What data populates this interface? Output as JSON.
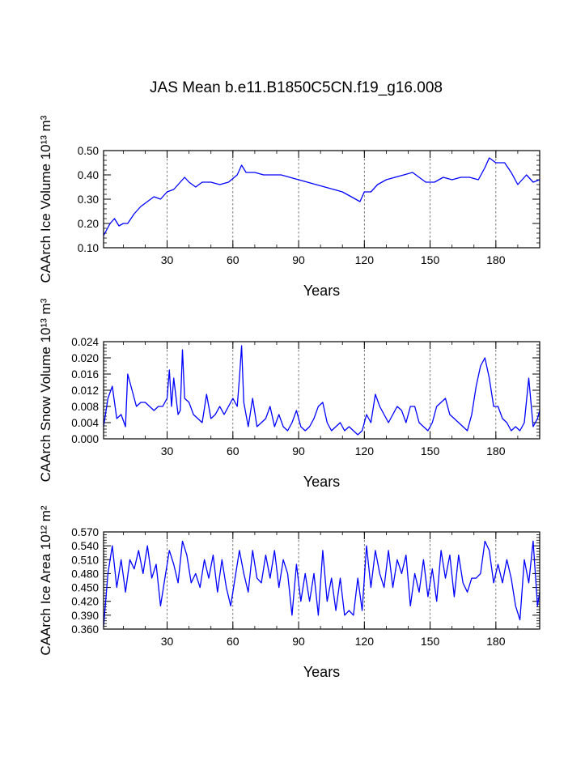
{
  "title": "JAS Mean b.e11.B1850C5CN.f19_g16.008",
  "colors": {
    "line": "#0000ff",
    "axis": "#000000",
    "grid": "#555555"
  },
  "chart_data": [
    {
      "type": "line",
      "ylabel": "CAArch Ice Volume 10¹³ m³",
      "xlabel": "Years",
      "xlim": [
        1,
        200
      ],
      "ylim": [
        0.1,
        0.5
      ],
      "xticks": [
        30,
        60,
        90,
        120,
        150,
        180
      ],
      "xtick_labels": [
        "30",
        "60",
        "90",
        "120",
        "150",
        "180"
      ],
      "yticks": [
        0.1,
        0.2,
        0.3,
        0.4,
        0.5
      ],
      "ytick_labels": [
        "0.10",
        "0.20",
        "0.30",
        "0.40",
        "0.50"
      ],
      "grid": "vertical dashed at x ticks",
      "x": [
        1,
        4,
        6,
        8,
        10,
        12,
        15,
        18,
        21,
        24,
        27,
        30,
        33,
        36,
        38,
        40,
        43,
        46,
        50,
        54,
        58,
        62,
        64,
        66,
        70,
        74,
        78,
        82,
        86,
        90,
        94,
        98,
        102,
        106,
        110,
        114,
        118,
        120,
        123,
        126,
        130,
        134,
        138,
        142,
        145,
        148,
        152,
        156,
        160,
        164,
        168,
        172,
        175,
        177,
        180,
        184,
        187,
        190,
        194,
        197,
        200
      ],
      "values": [
        0.15,
        0.2,
        0.22,
        0.19,
        0.2,
        0.2,
        0.24,
        0.27,
        0.29,
        0.31,
        0.3,
        0.33,
        0.34,
        0.37,
        0.39,
        0.37,
        0.35,
        0.37,
        0.37,
        0.36,
        0.37,
        0.4,
        0.44,
        0.41,
        0.41,
        0.4,
        0.4,
        0.4,
        0.39,
        0.38,
        0.37,
        0.36,
        0.35,
        0.34,
        0.33,
        0.31,
        0.29,
        0.33,
        0.33,
        0.36,
        0.38,
        0.39,
        0.4,
        0.41,
        0.39,
        0.37,
        0.37,
        0.39,
        0.38,
        0.39,
        0.39,
        0.38,
        0.43,
        0.47,
        0.45,
        0.45,
        0.41,
        0.36,
        0.4,
        0.37,
        0.38
      ]
    },
    {
      "type": "line",
      "ylabel": "CAArch Snow Volume 10¹³ m³",
      "xlabel": "Years",
      "xlim": [
        1,
        200
      ],
      "ylim": [
        0.0,
        0.024
      ],
      "xticks": [
        30,
        60,
        90,
        120,
        150,
        180
      ],
      "xtick_labels": [
        "30",
        "60",
        "90",
        "120",
        "150",
        "180"
      ],
      "yticks": [
        0.0,
        0.004,
        0.008,
        0.012,
        0.016,
        0.02,
        0.024
      ],
      "ytick_labels": [
        "0.000",
        "0.004",
        "0.008",
        "0.012",
        "0.016",
        "0.020",
        "0.024"
      ],
      "grid": "vertical dashed at x ticks",
      "x": [
        1,
        3,
        5,
        7,
        9,
        11,
        12,
        14,
        16,
        18,
        20,
        22,
        24,
        26,
        28,
        30,
        31,
        32,
        33,
        35,
        36,
        37,
        38,
        40,
        42,
        44,
        46,
        48,
        50,
        52,
        54,
        56,
        58,
        60,
        62,
        63,
        64,
        65,
        67,
        69,
        71,
        73,
        75,
        77,
        79,
        81,
        83,
        85,
        87,
        89,
        91,
        93,
        95,
        97,
        99,
        101,
        103,
        105,
        107,
        109,
        111,
        113,
        115,
        117,
        119,
        121,
        123,
        125,
        127,
        129,
        131,
        133,
        135,
        137,
        139,
        141,
        143,
        145,
        147,
        149,
        151,
        153,
        155,
        157,
        159,
        161,
        163,
        165,
        167,
        169,
        171,
        173,
        175,
        177,
        179,
        181,
        183,
        185,
        187,
        189,
        191,
        193,
        195,
        197,
        199,
        200
      ],
      "values": [
        0.003,
        0.01,
        0.013,
        0.005,
        0.006,
        0.003,
        0.016,
        0.012,
        0.008,
        0.009,
        0.009,
        0.008,
        0.007,
        0.008,
        0.008,
        0.01,
        0.017,
        0.008,
        0.015,
        0.006,
        0.007,
        0.022,
        0.01,
        0.009,
        0.006,
        0.005,
        0.004,
        0.011,
        0.005,
        0.006,
        0.008,
        0.006,
        0.008,
        0.01,
        0.008,
        0.015,
        0.023,
        0.009,
        0.003,
        0.01,
        0.003,
        0.004,
        0.005,
        0.008,
        0.003,
        0.006,
        0.003,
        0.002,
        0.004,
        0.007,
        0.003,
        0.002,
        0.003,
        0.005,
        0.008,
        0.009,
        0.004,
        0.002,
        0.003,
        0.004,
        0.002,
        0.003,
        0.002,
        0.001,
        0.002,
        0.006,
        0.004,
        0.011,
        0.008,
        0.006,
        0.004,
        0.006,
        0.008,
        0.007,
        0.004,
        0.008,
        0.008,
        0.004,
        0.003,
        0.002,
        0.004,
        0.008,
        0.009,
        0.01,
        0.006,
        0.005,
        0.004,
        0.003,
        0.002,
        0.006,
        0.013,
        0.018,
        0.02,
        0.015,
        0.008,
        0.008,
        0.005,
        0.004,
        0.002,
        0.003,
        0.002,
        0.004,
        0.015,
        0.003,
        0.005,
        0.007
      ]
    },
    {
      "type": "line",
      "ylabel": "CAArch Ice Area 10¹² m²",
      "xlabel": "Years",
      "xlim": [
        1,
        200
      ],
      "ylim": [
        0.36,
        0.57
      ],
      "xticks": [
        30,
        60,
        90,
        120,
        150,
        180
      ],
      "xtick_labels": [
        "30",
        "60",
        "90",
        "120",
        "150",
        "180"
      ],
      "yticks": [
        0.36,
        0.39,
        0.42,
        0.45,
        0.48,
        0.51,
        0.54,
        0.57
      ],
      "ytick_labels": [
        "0.360",
        "0.390",
        "0.420",
        "0.450",
        "0.480",
        "0.510",
        "0.540",
        "0.570"
      ],
      "grid": "vertical dashed at x ticks",
      "x": [
        1,
        3,
        5,
        7,
        9,
        11,
        13,
        15,
        17,
        19,
        21,
        23,
        25,
        27,
        29,
        31,
        33,
        35,
        37,
        39,
        41,
        43,
        45,
        47,
        49,
        51,
        53,
        55,
        57,
        59,
        61,
        63,
        65,
        67,
        69,
        71,
        73,
        75,
        77,
        79,
        81,
        83,
        85,
        87,
        89,
        91,
        93,
        95,
        97,
        99,
        101,
        103,
        105,
        107,
        109,
        111,
        113,
        115,
        117,
        119,
        121,
        123,
        125,
        127,
        129,
        131,
        133,
        135,
        137,
        139,
        141,
        143,
        145,
        147,
        149,
        151,
        153,
        155,
        157,
        159,
        161,
        163,
        165,
        167,
        169,
        171,
        173,
        175,
        177,
        179,
        181,
        183,
        185,
        187,
        189,
        191,
        193,
        195,
        197,
        199,
        200
      ],
      "values": [
        0.365,
        0.48,
        0.54,
        0.45,
        0.51,
        0.44,
        0.51,
        0.49,
        0.53,
        0.48,
        0.54,
        0.47,
        0.5,
        0.41,
        0.47,
        0.53,
        0.5,
        0.46,
        0.55,
        0.52,
        0.46,
        0.48,
        0.45,
        0.51,
        0.47,
        0.52,
        0.44,
        0.51,
        0.45,
        0.41,
        0.47,
        0.53,
        0.48,
        0.44,
        0.53,
        0.47,
        0.46,
        0.52,
        0.47,
        0.53,
        0.45,
        0.51,
        0.48,
        0.39,
        0.5,
        0.42,
        0.48,
        0.42,
        0.48,
        0.39,
        0.53,
        0.42,
        0.47,
        0.4,
        0.47,
        0.39,
        0.4,
        0.39,
        0.47,
        0.4,
        0.54,
        0.45,
        0.53,
        0.48,
        0.45,
        0.53,
        0.45,
        0.51,
        0.48,
        0.52,
        0.41,
        0.48,
        0.44,
        0.51,
        0.43,
        0.49,
        0.42,
        0.53,
        0.47,
        0.52,
        0.43,
        0.52,
        0.46,
        0.44,
        0.47,
        0.47,
        0.48,
        0.55,
        0.53,
        0.46,
        0.5,
        0.46,
        0.51,
        0.47,
        0.41,
        0.38,
        0.51,
        0.46,
        0.55,
        0.41,
        0.44
      ]
    }
  ]
}
